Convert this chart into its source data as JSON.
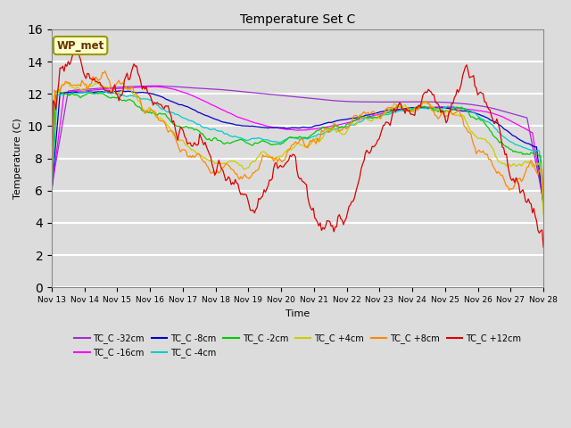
{
  "title": "Temperature Set C",
  "xlabel": "Time",
  "ylabel": "Temperature (C)",
  "ylim": [
    0,
    16
  ],
  "yticks": [
    0,
    2,
    4,
    6,
    8,
    10,
    12,
    14,
    16
  ],
  "bg_color": "#dcdcdc",
  "annotation_text": "WP_met",
  "annotation_bg": "#ffffcc",
  "annotation_border": "#999900",
  "series": [
    {
      "label": "TC_C -32cm",
      "color": "#9933cc"
    },
    {
      "label": "TC_C -16cm",
      "color": "#ff00ff"
    },
    {
      "label": "TC_C -8cm",
      "color": "#0000cc"
    },
    {
      "label": "TC_C -4cm",
      "color": "#00cccc"
    },
    {
      "label": "TC_C -2cm",
      "color": "#00cc00"
    },
    {
      "label": "TC_C +4cm",
      "color": "#cccc00"
    },
    {
      "label": "TC_C +8cm",
      "color": "#ff8800"
    },
    {
      "label": "TC_C +12cm",
      "color": "#dd0000"
    }
  ],
  "xtick_labels": [
    "Nov 13",
    "Nov 14",
    "Nov 15",
    "Nov 16",
    "Nov 17",
    "Nov 18",
    "Nov 19",
    "Nov 20",
    "Nov 21",
    "Nov 22",
    "Nov 23",
    "Nov 24",
    "Nov 25",
    "Nov 26",
    "Nov 27",
    "Nov 28"
  ]
}
